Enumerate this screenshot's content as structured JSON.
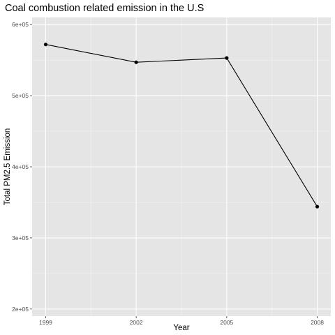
{
  "chart_data": {
    "type": "line",
    "title": "Coal combustion related emission in the U.S",
    "xlabel": "Year",
    "ylabel": "Total PM2.5 Emission",
    "x": [
      1999,
      2002,
      2005,
      2008
    ],
    "y": [
      572000,
      547000,
      553000,
      344000
    ],
    "xlim": [
      1999,
      2008
    ],
    "ylim": [
      200000,
      600000
    ],
    "x_ticks": [
      1999,
      2002,
      2005,
      2008
    ],
    "x_tick_labels": [
      "1999",
      "2002",
      "2005",
      "2008"
    ],
    "y_ticks": [
      200000,
      300000,
      400000,
      500000,
      600000
    ],
    "y_tick_labels": [
      "2e+05",
      "3e+05",
      "4e+05",
      "5e+05",
      "6e+05"
    ],
    "grid": true,
    "markers": true,
    "legend": "none",
    "colors": {
      "panel_background": "#e5e5e5",
      "grid_major": "#ffffff",
      "grid_minor": "#f2f2f2",
      "line": "#000000",
      "point": "#000000",
      "tick_label": "#4d4d4d"
    }
  }
}
